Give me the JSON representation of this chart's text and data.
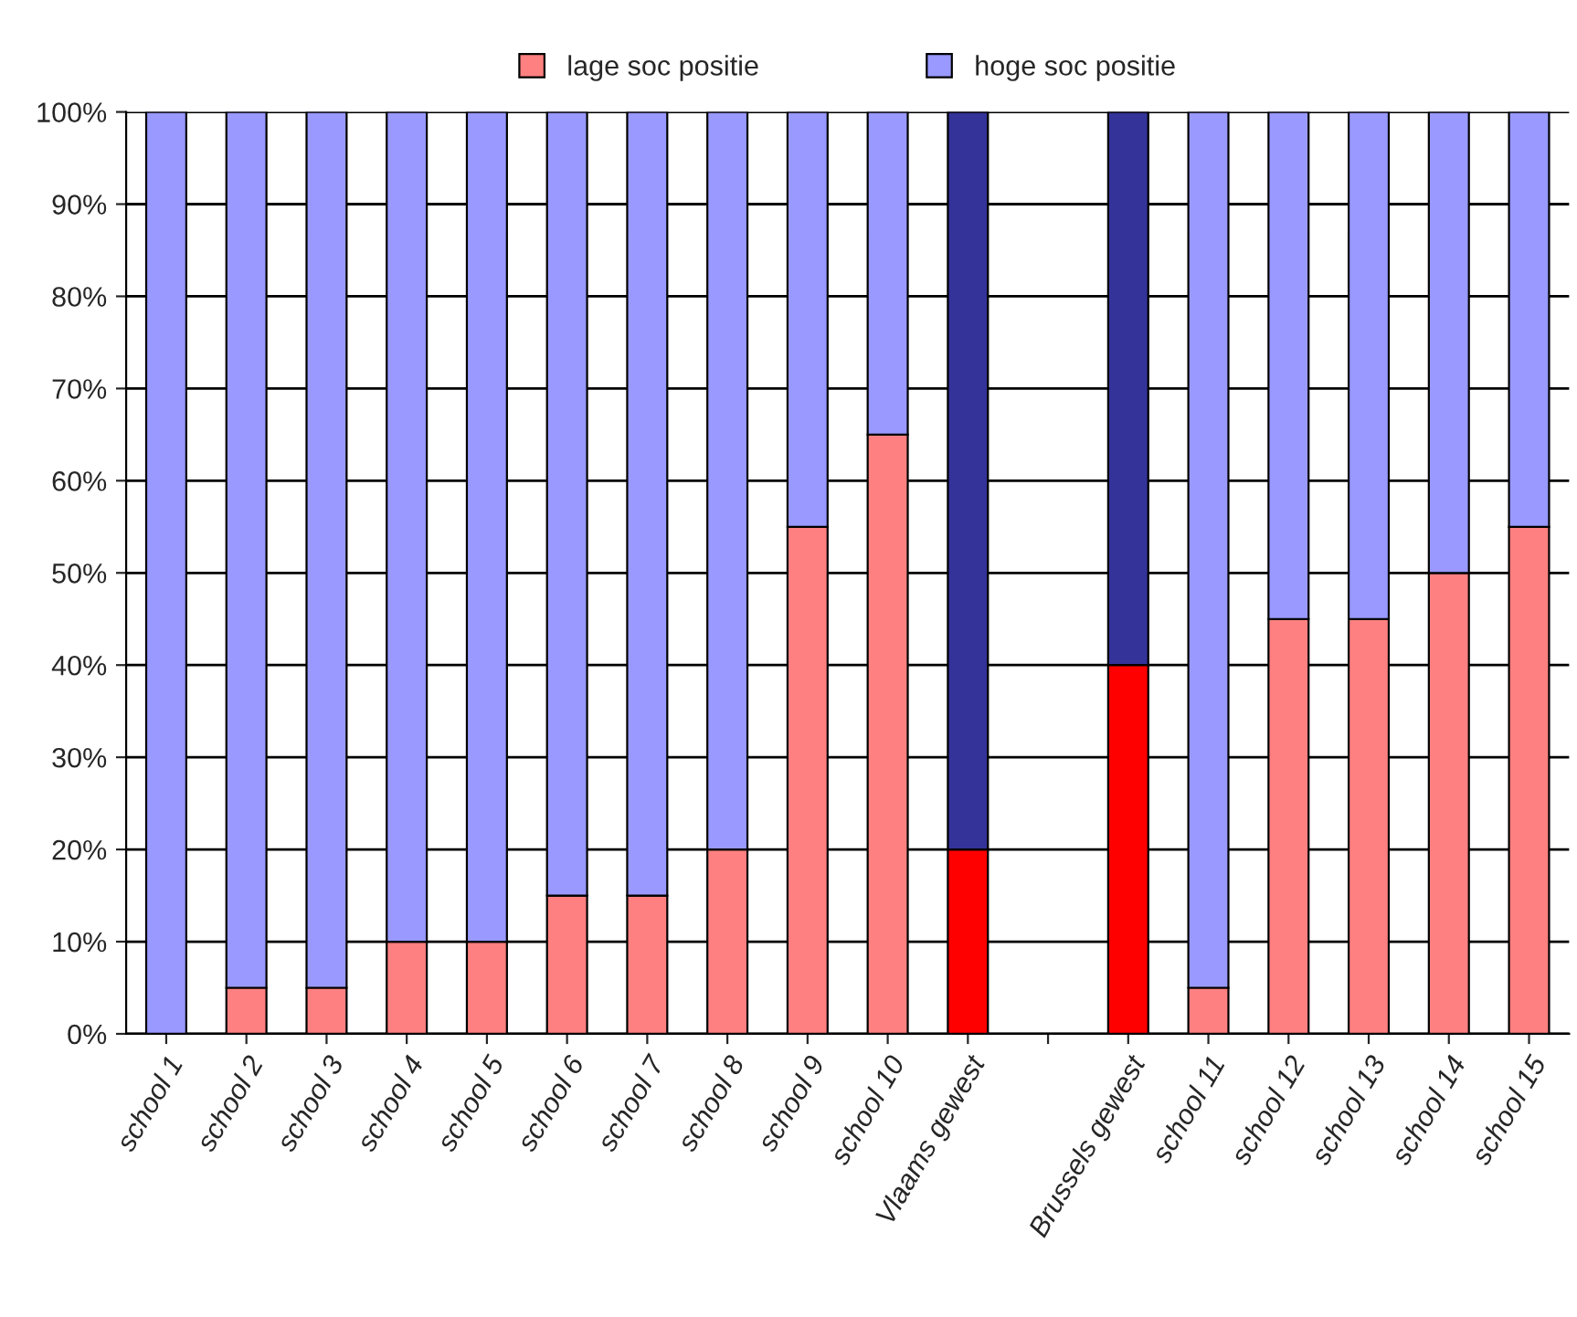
{
  "chart_data": {
    "type": "bar",
    "stacked": true,
    "categories": [
      "school 1",
      "school 2",
      "school 3",
      "school 4",
      "school 5",
      "school 6",
      "school 7",
      "school 8",
      "school 9",
      "school 10",
      "Vlaams gewest",
      null,
      "Brussels gewest",
      "school 11",
      "school 12",
      "school 13",
      "school 14",
      "school 15"
    ],
    "series": [
      {
        "name": "lage soc positie",
        "color": "#ff8080",
        "colors": [
          "#ff8080",
          "#ff8080",
          "#ff8080",
          "#ff8080",
          "#ff8080",
          "#ff8080",
          "#ff8080",
          "#ff8080",
          "#ff8080",
          "#ff8080",
          "#ff0000",
          null,
          "#ff0000",
          "#ff8080",
          "#ff8080",
          "#ff8080",
          "#ff8080",
          "#ff8080"
        ],
        "values": [
          0,
          5,
          5,
          10,
          10,
          15,
          15,
          20,
          55,
          65,
          20,
          null,
          40,
          5,
          45,
          45,
          50,
          55
        ]
      },
      {
        "name": "hoge soc positie",
        "color": "#9999ff",
        "colors": [
          "#9999ff",
          "#9999ff",
          "#9999ff",
          "#9999ff",
          "#9999ff",
          "#9999ff",
          "#9999ff",
          "#9999ff",
          "#9999ff",
          "#9999ff",
          "#333399",
          null,
          "#333399",
          "#9999ff",
          "#9999ff",
          "#9999ff",
          "#9999ff",
          "#9999ff"
        ],
        "values": [
          100,
          95,
          95,
          90,
          90,
          85,
          85,
          80,
          45,
          35,
          80,
          null,
          60,
          95,
          55,
          55,
          50,
          45
        ]
      }
    ],
    "ylim": [
      0,
      100
    ],
    "yticks": [
      {
        "value": 0,
        "label": "0%"
      },
      {
        "value": 10,
        "label": "10%"
      },
      {
        "value": 20,
        "label": "20%"
      },
      {
        "value": 30,
        "label": "30%"
      },
      {
        "value": 40,
        "label": "40%"
      },
      {
        "value": 50,
        "label": "50%"
      },
      {
        "value": 60,
        "label": "60%"
      },
      {
        "value": 70,
        "label": "70%"
      },
      {
        "value": 80,
        "label": "80%"
      },
      {
        "value": 90,
        "label": "90%"
      },
      {
        "value": 100,
        "label": "100%"
      }
    ],
    "grid": "y",
    "legend": "top"
  }
}
